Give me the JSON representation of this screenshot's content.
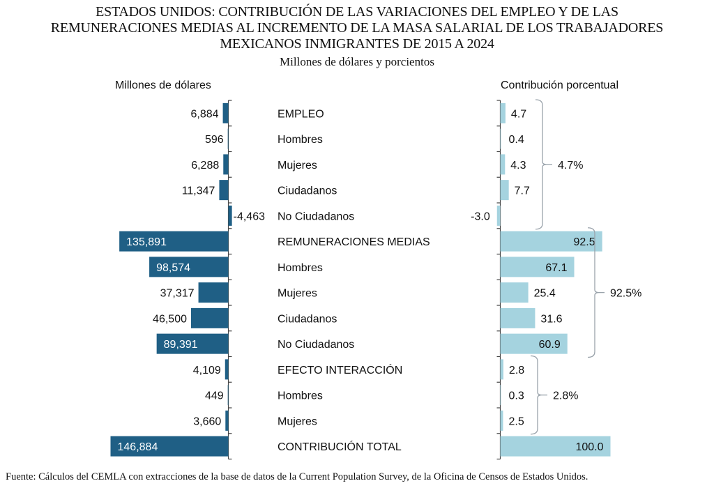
{
  "title_lines": [
    "ESTADOS UNIDOS: CONTRIBUCIÓN DE LAS VARIACIONES DEL EMPLEO Y DE LAS",
    "REMUNERACIONES MEDIAS AL INCREMENTO DE LA MASA SALARIAL DE LOS TRABAJADORES",
    "MEXICANOS INMIGRANTES DE 2015 A 2024"
  ],
  "subtitle": "Millones de dólares y porcientos",
  "source": "Fuente: Cálculos del CEMLA con extracciones de la base de datos de la Current Population Survey, de la Oficina de Censos de Estados Unidos.",
  "colors": {
    "left_bar": "#1f5f85",
    "right_bar": "#a5d3df",
    "bracket": "#9aa3ab",
    "axis": "#444444"
  },
  "chart_data": {
    "type": "bar",
    "orientation": "horizontal",
    "title": "ESTADOS UNIDOS: CONTRIBUCIÓN DE LAS VARIACIONES DEL EMPLEO Y DE LAS REMUNERACIONES MEDIAS AL INCREMENTO DE LA MASA SALARIAL DE LOS TRABAJADORES MEXICANOS INMIGRANTES DE 2015 A 2024",
    "subtitle": "Millones de dólares y porcientos",
    "categories": [
      "EMPLEO",
      "Hombres",
      "Mujeres",
      "Ciudadanos",
      "No Ciudadanos",
      "REMUNERACIONES MEDIAS",
      "Hombres",
      "Mujeres",
      "Ciudadanos",
      "No Ciudadanos",
      "EFECTO INTERACCIÓN",
      "Hombres",
      "Mujeres",
      "CONTRIBUCIÓN TOTAL"
    ],
    "series": [
      {
        "name": "Millones de dólares",
        "direction": "left",
        "values": [
          6884,
          596,
          6288,
          11347,
          -4463,
          135891,
          98574,
          37317,
          46500,
          89391,
          4109,
          449,
          3660,
          146884
        ],
        "labels": [
          "6,884",
          "596",
          "6,288",
          "11,347",
          "-4,463",
          "135,891",
          "98,574",
          "37,317",
          "46,500",
          "89,391",
          "4,109",
          "449",
          "3,660",
          "146,884"
        ]
      },
      {
        "name": "Contribución porcentual",
        "direction": "right",
        "values": [
          4.7,
          0.4,
          4.3,
          7.7,
          -3.0,
          92.5,
          67.1,
          25.4,
          31.6,
          60.9,
          2.8,
          0.3,
          2.5,
          100.0
        ],
        "labels": [
          "4.7",
          "0.4",
          "4.3",
          "7.7",
          "-3.0",
          "92.5",
          "67.1",
          "25.4",
          "31.6",
          "60.9",
          "2.8",
          "0.3",
          "2.5",
          "100.0"
        ]
      }
    ],
    "group_brackets": [
      {
        "label": "4.7%",
        "from_row": 0,
        "to_row": 4
      },
      {
        "label": "92.5%",
        "from_row": 5,
        "to_row": 9
      },
      {
        "label": "2.8%",
        "from_row": 10,
        "to_row": 12
      }
    ],
    "xlim_left": [
      0,
      146884
    ],
    "xlim_right": [
      0,
      100
    ],
    "grid": false,
    "legend": "none"
  },
  "axis_headers": {
    "left": "Millones de dólares",
    "right": "Contribución porcentual"
  }
}
